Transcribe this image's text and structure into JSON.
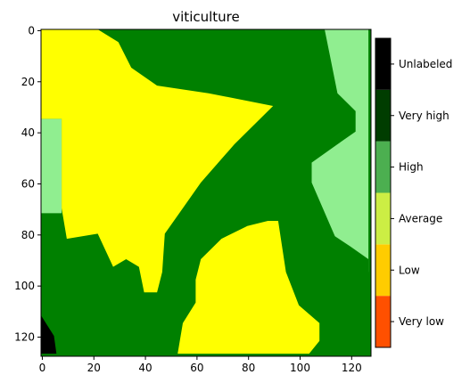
{
  "chart_data": {
    "type": "heatmap",
    "title": "viticulture",
    "xlabel": "",
    "ylabel": "",
    "xlim": [
      0,
      127
    ],
    "ylim": [
      0,
      127
    ],
    "x_ticks": [
      "0",
      "20",
      "40",
      "60",
      "80",
      "100",
      "120"
    ],
    "y_ticks": [
      "0",
      "20",
      "40",
      "60",
      "80",
      "100",
      "120"
    ],
    "colorbar": {
      "categories": [
        "Very low",
        "Low",
        "Average",
        "High",
        "Very high",
        "Unlabeled"
      ],
      "colors": [
        "#ff5000",
        "#ffcc00",
        "#ccee44",
        "#4caf50",
        "#003d00",
        "#000000"
      ]
    },
    "region_colors": {
      "yellow": "#ffff00",
      "light_green": "#90ee90",
      "green": "#008000",
      "black": "#000000"
    },
    "regions": [
      {
        "name": "light-green-region-east",
        "color_key": "light_green",
        "points": [
          [
            18,
            0
          ],
          [
            105,
            0
          ],
          [
            105,
            30
          ],
          [
            105,
            60
          ],
          [
            120,
            95
          ],
          [
            127,
            95
          ],
          [
            127,
            0
          ]
        ]
      },
      {
        "name": "green-region-main",
        "color_key": "green",
        "points": [
          [
            0,
            70
          ],
          [
            7,
            70
          ],
          [
            7,
            82
          ],
          [
            22,
            98
          ],
          [
            22,
            105
          ],
          [
            42,
            105
          ],
          [
            42,
            95
          ],
          [
            47,
            88
          ],
          [
            47,
            78
          ],
          [
            60,
            70
          ],
          [
            68,
            55
          ],
          [
            85,
            38
          ],
          [
            90,
            30
          ],
          [
            102,
            16
          ],
          [
            103,
            0
          ],
          [
            110,
            0
          ],
          [
            112,
            10
          ],
          [
            115,
            25
          ],
          [
            122,
            32
          ],
          [
            122,
            40
          ],
          [
            115,
            45
          ],
          [
            101,
            55
          ],
          [
            100,
            62
          ],
          [
            105,
            75
          ],
          [
            120,
            85
          ],
          [
            127,
            90
          ],
          [
            127,
            127
          ],
          [
            0,
            127
          ]
        ]
      },
      {
        "name": "light-green-region-west",
        "color_key": "light_green",
        "points": [
          [
            0,
            35
          ],
          [
            8,
            35
          ],
          [
            8,
            72
          ],
          [
            0,
            72
          ]
        ]
      },
      {
        "name": "yellow-region-north",
        "color_key": "yellow",
        "points": [
          [
            0,
            0
          ],
          [
            22,
            0
          ],
          [
            30,
            5
          ],
          [
            35,
            15
          ],
          [
            45,
            22
          ],
          [
            65,
            25
          ],
          [
            90,
            30
          ],
          [
            75,
            45
          ],
          [
            62,
            60
          ],
          [
            55,
            70
          ],
          [
            48,
            80
          ],
          [
            47,
            95
          ],
          [
            45,
            103
          ],
          [
            40,
            103
          ],
          [
            38,
            93
          ],
          [
            33,
            90
          ],
          [
            28,
            93
          ],
          [
            22,
            80
          ],
          [
            10,
            82
          ],
          [
            8,
            70
          ],
          [
            8,
            35
          ],
          [
            0,
            35
          ]
        ]
      },
      {
        "name": "yellow-region-south",
        "color_key": "yellow",
        "points": [
          [
            53,
            127
          ],
          [
            55,
            115
          ],
          [
            60,
            107
          ],
          [
            60,
            98
          ],
          [
            62,
            90
          ],
          [
            70,
            82
          ],
          [
            80,
            77
          ],
          [
            88,
            75
          ],
          [
            92,
            75
          ],
          [
            95,
            95
          ],
          [
            100,
            108
          ],
          [
            108,
            115
          ],
          [
            108,
            122
          ],
          [
            104,
            127
          ]
        ]
      },
      {
        "name": "black-region-corner",
        "color_key": "black",
        "points": [
          [
            0,
            112
          ],
          [
            5,
            120
          ],
          [
            6,
            127
          ],
          [
            0,
            127
          ]
        ]
      }
    ]
  }
}
